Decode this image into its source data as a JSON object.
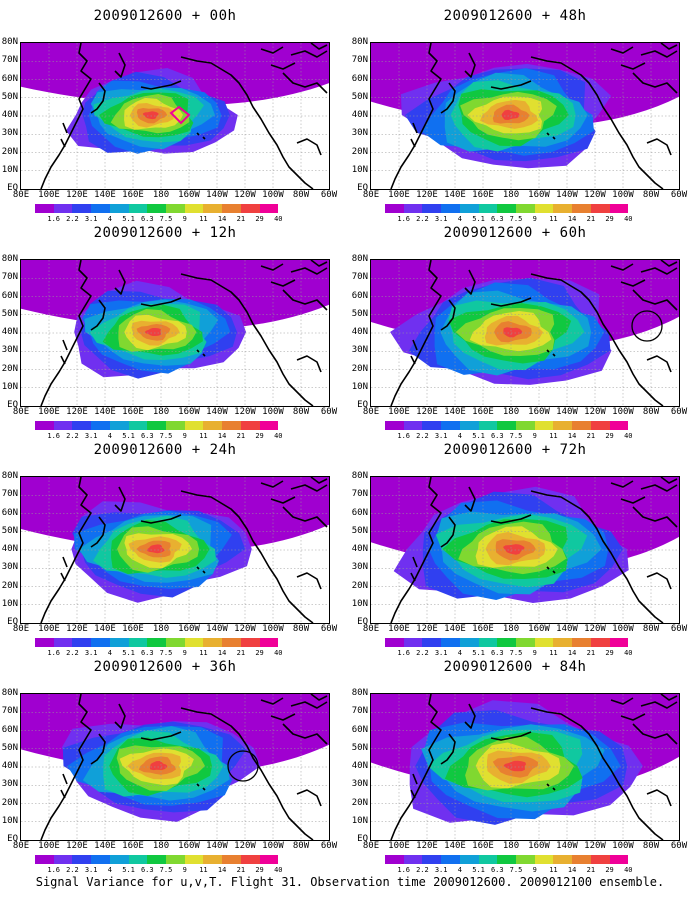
{
  "footer": "Signal Variance for u,v,T. Flight 31. Observation time 2009012600. 2009012100 ensemble.",
  "lat_labels": [
    "80N",
    "70N",
    "60N",
    "50N",
    "40N",
    "30N",
    "20N",
    "10N",
    "EQ"
  ],
  "lon_labels": [
    "80E",
    "100E",
    "120E",
    "140E",
    "160E",
    "180",
    "160W",
    "140W",
    "120W",
    "100W",
    "80W",
    "60W"
  ],
  "colorbar": {
    "labels": [
      "1.6",
      "2.2",
      "3.1",
      "4",
      "5.1",
      "6.3",
      "7.5",
      "9",
      "11",
      "14",
      "21",
      "29",
      "40"
    ],
    "colors": [
      "#a000d0",
      "#7030f0",
      "#3040f0",
      "#1070f0",
      "#10a0d8",
      "#10c8a0",
      "#10c840",
      "#80d830",
      "#e0e030",
      "#e8b030",
      "#e88030",
      "#f04040",
      "#f00098",
      "#ffffff"
    ]
  },
  "panels": [
    {
      "title": "2009012600 + 00h",
      "col": 0,
      "row": 0,
      "spread": 0.6,
      "intensity": 1.0,
      "circle": false
    },
    {
      "title": "2009012600 + 12h",
      "col": 0,
      "row": 1,
      "spread": 0.75,
      "intensity": 0.85,
      "circle": false
    },
    {
      "title": "2009012600 + 24h",
      "col": 0,
      "row": 2,
      "spread": 0.85,
      "intensity": 0.8,
      "circle": false
    },
    {
      "title": "2009012600 + 36h",
      "col": 0,
      "row": 3,
      "spread": 0.95,
      "intensity": 0.75,
      "circle": true
    },
    {
      "title": "2009012600 + 48h",
      "col": 1,
      "row": 0,
      "spread": 1.05,
      "intensity": 0.7,
      "circle": false
    },
    {
      "title": "2009012600 + 60h",
      "col": 1,
      "row": 1,
      "spread": 1.15,
      "intensity": 0.7,
      "circle": true
    },
    {
      "title": "2009012600 + 72h",
      "col": 1,
      "row": 2,
      "spread": 1.25,
      "intensity": 0.72,
      "circle": false
    },
    {
      "title": "2009012600 + 84h",
      "col": 1,
      "row": 3,
      "spread": 1.35,
      "intensity": 0.75,
      "circle": false
    }
  ]
}
